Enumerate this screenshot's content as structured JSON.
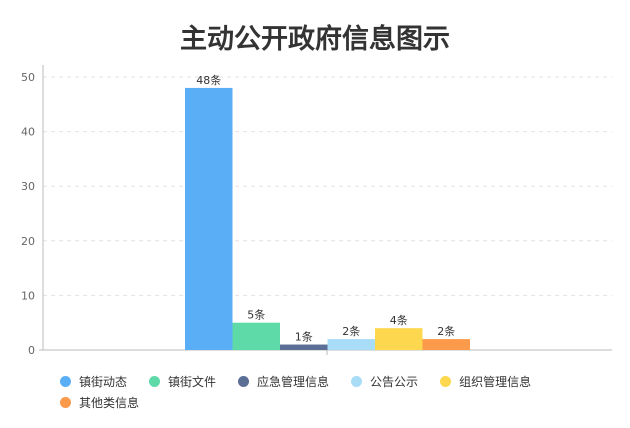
{
  "chart_data": {
    "type": "bar",
    "title": "主动公开政府信息图示",
    "xlabel": "",
    "ylabel": "",
    "ylim": [
      0,
      50
    ],
    "yticks": [
      0,
      10,
      20,
      30,
      40,
      50
    ],
    "grid": true,
    "legend_position": "bottom",
    "series": [
      {
        "name": "镇街动态",
        "values": [
          48
        ],
        "label": "48条",
        "color": "#5aaef5"
      },
      {
        "name": "镇街文件",
        "values": [
          5
        ],
        "label": "5条",
        "color": "#5ed9a8"
      },
      {
        "name": "应急管理信息",
        "values": [
          1
        ],
        "label": "1条",
        "color": "#5b6e96"
      },
      {
        "name": "公告公示",
        "values": [
          2
        ],
        "label": "2条",
        "color": "#a9dcf7"
      },
      {
        "name": "组织管理信息",
        "values": [
          4
        ],
        "label": "4条",
        "color": "#fdd84f"
      },
      {
        "name": "其他类信息",
        "values": [
          2
        ],
        "label": "2条",
        "color": "#fb9a4b"
      }
    ]
  }
}
